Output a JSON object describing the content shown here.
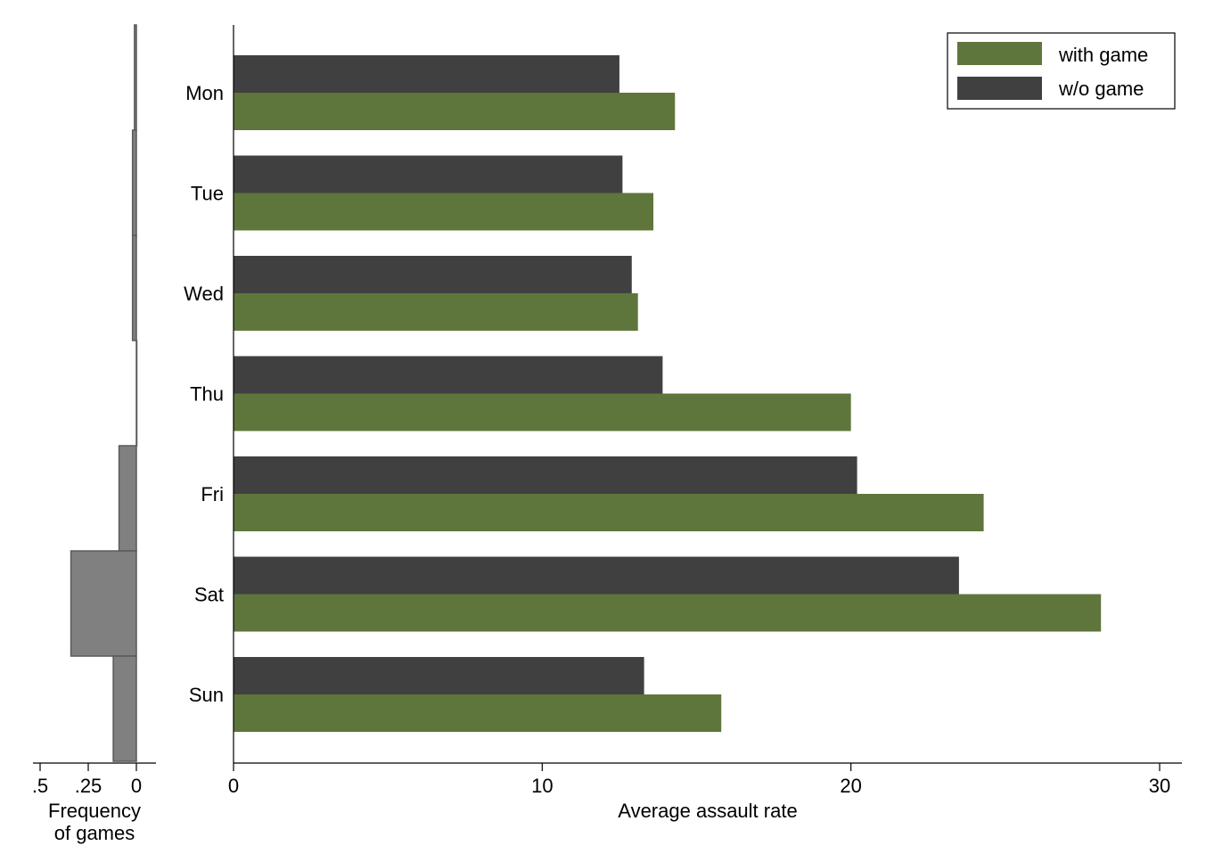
{
  "chart_data": [
    {
      "type": "bar",
      "orientation": "horizontal",
      "categories": [
        "Mon",
        "Tue",
        "Wed",
        "Thu",
        "Fri",
        "Sat",
        "Sun"
      ],
      "values": [
        0.01,
        0.02,
        0.02,
        0.0,
        0.09,
        0.34,
        0.12
      ],
      "xlabel": [
        "Frequency",
        "of games"
      ],
      "xticks": [
        ".5",
        ".25",
        "0"
      ],
      "xlim": [
        0.5,
        0
      ],
      "color": "#808080"
    },
    {
      "type": "bar",
      "orientation": "horizontal",
      "categories": [
        "Mon",
        "Tue",
        "Wed",
        "Thu",
        "Fri",
        "Sat",
        "Sun"
      ],
      "series": [
        {
          "name": "with game",
          "color": "#5e763b",
          "values": [
            14.3,
            13.6,
            13.1,
            20.0,
            24.3,
            28.1,
            15.8
          ]
        },
        {
          "name": "w/o game",
          "color": "#404040",
          "values": [
            12.5,
            12.6,
            12.9,
            13.9,
            20.2,
            23.5,
            13.3
          ]
        }
      ],
      "xlabel": "Average assault rate",
      "xticks": [
        "0",
        "10",
        "20",
        "30"
      ],
      "xlim": [
        0,
        30
      ],
      "legend": "top-right",
      "grid": false
    }
  ]
}
